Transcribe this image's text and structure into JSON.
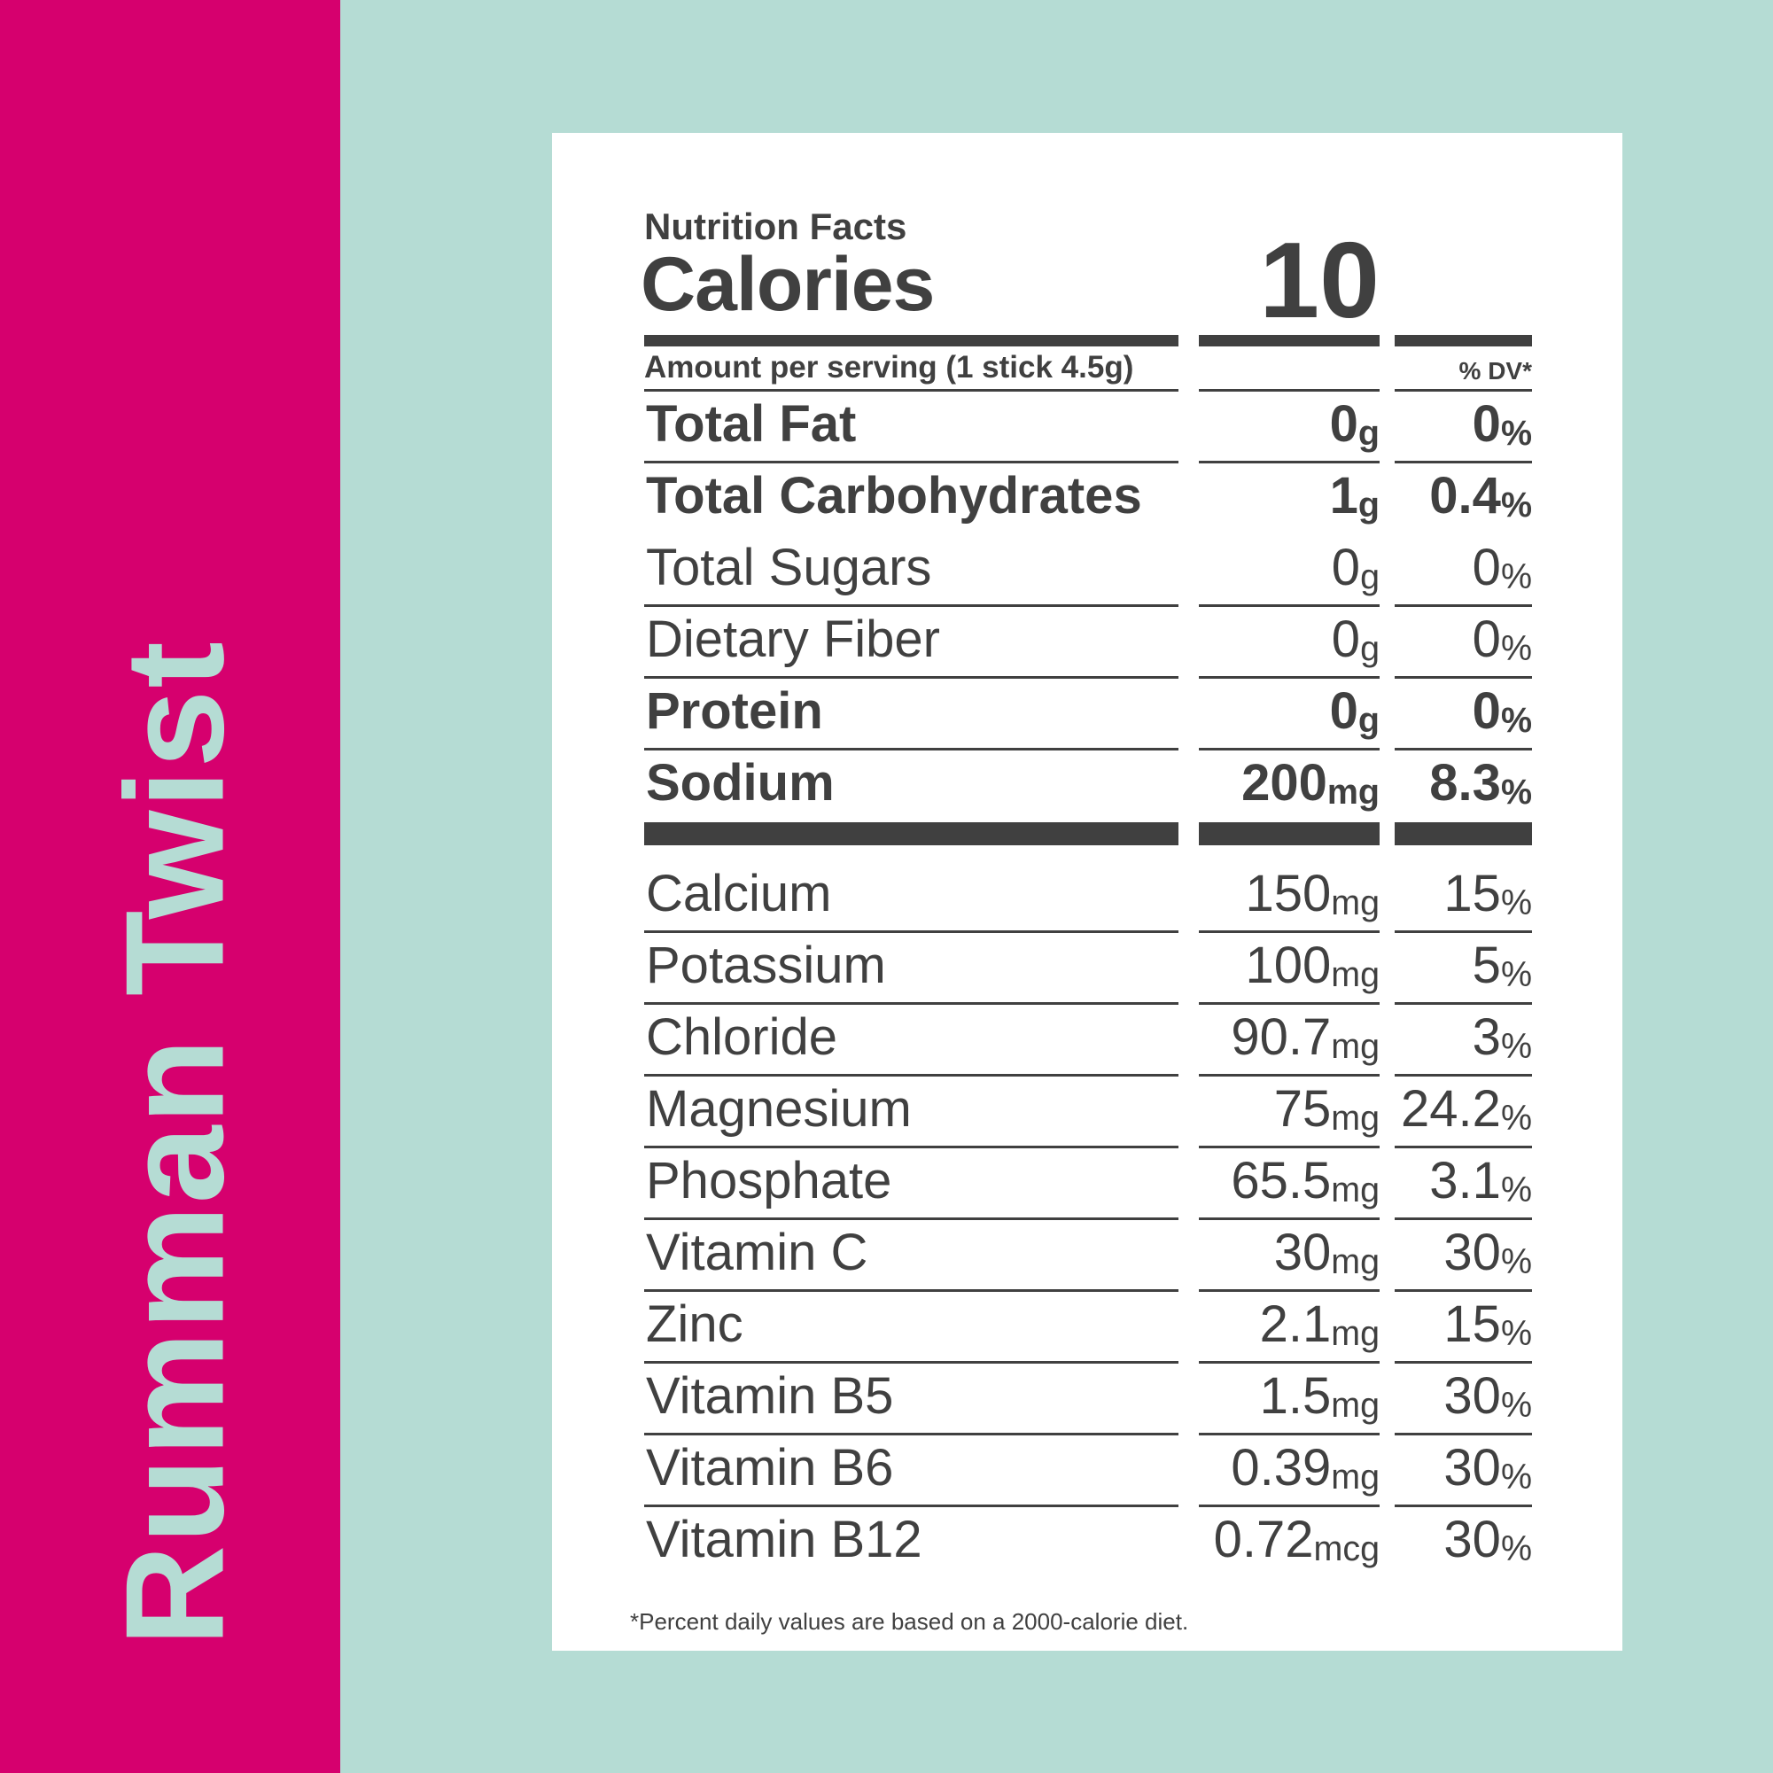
{
  "flavor": "Rumman Twist",
  "colors": {
    "band": "#d6006e",
    "background": "#b5dcd4",
    "text": "#404040"
  },
  "label": {
    "title": "Nutrition Facts",
    "calories_label": "Calories",
    "calories_value": "10",
    "serving": "Amount per serving (1 stick 4.5g)",
    "dv_header": "% DV*",
    "main_rows": [
      {
        "name": "Total Fat",
        "amount": "0",
        "unit": "g",
        "dv": "0",
        "bold": true
      },
      {
        "name": "Total Carbohydrates",
        "amount": "1",
        "unit": "g",
        "dv": "0.4",
        "bold": true,
        "noline": true
      },
      {
        "name": "Total Sugars",
        "amount": "0",
        "unit": "g",
        "dv": "0",
        "bold": false
      },
      {
        "name": "Dietary Fiber",
        "amount": "0",
        "unit": "g",
        "dv": "0",
        "bold": false
      },
      {
        "name": "Protein",
        "amount": "0",
        "unit": "g",
        "dv": "0",
        "bold": true
      },
      {
        "name": "Sodium",
        "amount": "200",
        "unit": "mg",
        "dv": "8.3",
        "bold": true,
        "noline": true
      }
    ],
    "micro_rows": [
      {
        "name": "Calcium",
        "amount": "150",
        "unit": "mg",
        "dv": "15"
      },
      {
        "name": "Potassium",
        "amount": "100",
        "unit": "mg",
        "dv": "5"
      },
      {
        "name": "Chloride",
        "amount": "90.7",
        "unit": "mg",
        "dv": "3"
      },
      {
        "name": "Magnesium",
        "amount": "75",
        "unit": "mg",
        "dv": "24.2"
      },
      {
        "name": "Phosphate",
        "amount": "65.5",
        "unit": "mg",
        "dv": "3.1"
      },
      {
        "name": "Vitamin C",
        "amount": "30",
        "unit": "mg",
        "dv": "30"
      },
      {
        "name": "Zinc",
        "amount": "2.1",
        "unit": "mg",
        "dv": "15"
      },
      {
        "name": "Vitamin B5",
        "amount": "1.5",
        "unit": "mg",
        "dv": "30"
      },
      {
        "name": "Vitamin B6",
        "amount": "0.39",
        "unit": "mg",
        "dv": "30"
      },
      {
        "name": "Vitamin B12",
        "amount": "0.72",
        "unit": "mcg",
        "dv": "30",
        "noline": true
      }
    ],
    "percent_sign": "%",
    "footnote": "*Percent daily values are based on a 2000-calorie diet."
  }
}
